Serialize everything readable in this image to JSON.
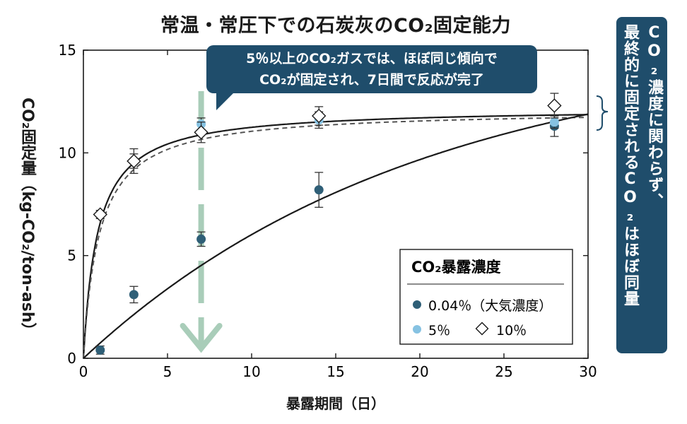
{
  "chart_data": {
    "type": "scatter",
    "title": "常温・常圧下での石炭灰のCO₂固定能力",
    "xlabel": "暴露期間（日）",
    "ylabel": "CO₂固定量（kg-CO₂/ton-ash）",
    "xlim": [
      0,
      30
    ],
    "ylim": [
      0,
      15
    ],
    "x_ticks": [
      "0",
      "5",
      "10",
      "15",
      "20",
      "25",
      "30"
    ],
    "y_ticks": [
      "0",
      "5",
      "10",
      "15"
    ],
    "grid": false,
    "legend_position": "bottom-right",
    "legend_title": "CO₂暴露濃度",
    "series": [
      {
        "name": "0.04％（大気濃度）",
        "marker": "circle",
        "color": "#2f5f77",
        "points": [
          {
            "x": 1,
            "y": 0.4,
            "err": 0.2
          },
          {
            "x": 3,
            "y": 3.1,
            "err": 0.4
          },
          {
            "x": 7,
            "y": 5.8,
            "err": 0.35
          },
          {
            "x": 14,
            "y": 8.2,
            "err": 0.85
          },
          {
            "x": 28,
            "y": 11.3,
            "err": 0.5
          }
        ]
      },
      {
        "name": "5％",
        "marker": "circle",
        "color": "#86c2e2",
        "points": [
          {
            "x": 1,
            "y": 7.0,
            "err": 0.2
          },
          {
            "x": 3,
            "y": 9.6,
            "err": 0.35
          },
          {
            "x": 7,
            "y": 11.4,
            "err": 0.3
          },
          {
            "x": 14,
            "y": 11.6,
            "err": 0.4
          },
          {
            "x": 28,
            "y": 11.5,
            "err": 0.3
          }
        ]
      },
      {
        "name": "10％",
        "marker": "diamond",
        "color": "#ffffff",
        "points": [
          {
            "x": 1,
            "y": 7.0,
            "err": 0.2
          },
          {
            "x": 3,
            "y": 9.6,
            "err": 0.6
          },
          {
            "x": 7,
            "y": 11.0,
            "err": 0.5
          },
          {
            "x": 14,
            "y": 11.8,
            "err": 0.45
          },
          {
            "x": 28,
            "y": 12.3,
            "err": 0.6
          }
        ]
      }
    ],
    "annotations": {
      "callout_lines": [
        "5％以上のCO₂ガスでは、ほぼ同じ傾向で",
        "CO₂が固定され、7日間で反応が完了"
      ],
      "side_note_lines": [
        "CO₂濃度に関わらず、",
        "最終的に固定されるCO₂はほぼ同量"
      ],
      "arrow_x": 7
    },
    "colors": {
      "curve": "#1a1a1a",
      "dashed_curve": "#555555",
      "arrow": "#a9cdb9",
      "callout_bg": "#1f4d6b"
    }
  }
}
